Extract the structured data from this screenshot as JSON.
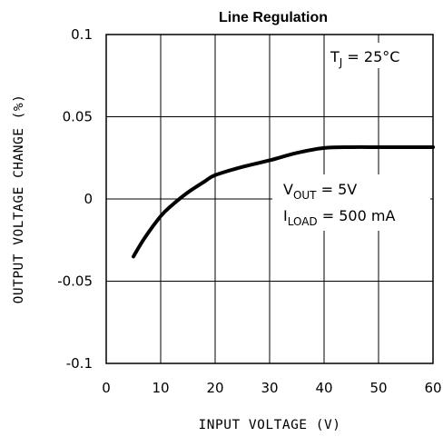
{
  "chart_data": {
    "type": "line",
    "title": "Line Regulation",
    "xlabel": "INPUT VOLTAGE (V)",
    "ylabel": "OUTPUT VOLTAGE CHANGE (%)",
    "xlim": [
      0,
      60
    ],
    "ylim": [
      -0.1,
      0.1
    ],
    "x_ticks": [
      0,
      10,
      20,
      30,
      40,
      50,
      60
    ],
    "x_tick_labels": [
      "0",
      "10",
      "20",
      "30",
      "40",
      "50",
      "60"
    ],
    "y_ticks": [
      0.1,
      0.05,
      0,
      -0.05,
      -0.1
    ],
    "y_tick_labels": [
      "0.1",
      "0.05",
      "0",
      "-0.05",
      "-0.1"
    ],
    "grid": true,
    "series": [
      {
        "x": [
          5,
          7,
          10,
          12,
          15,
          18,
          20,
          25,
          30,
          35,
          40,
          45,
          50,
          55,
          60
        ],
        "y": [
          -0.035,
          -0.024,
          -0.0105,
          -0.004,
          0.004,
          0.0105,
          0.0145,
          0.0195,
          0.0235,
          0.028,
          0.031,
          0.0315,
          0.0315,
          0.0315,
          0.0315
        ]
      }
    ],
    "annotations": {
      "tj": {
        "main": "T",
        "sub": "J",
        "rest": " = 25°C"
      },
      "vout": {
        "main": "V",
        "sub": "OUT",
        "rest": " = 5V"
      },
      "iload": {
        "main": "I",
        "sub": "LOAD",
        "rest": " = 500 mA"
      }
    },
    "colors": {
      "line": "#000000",
      "grid": "#000000",
      "background": "#ffffff"
    }
  }
}
